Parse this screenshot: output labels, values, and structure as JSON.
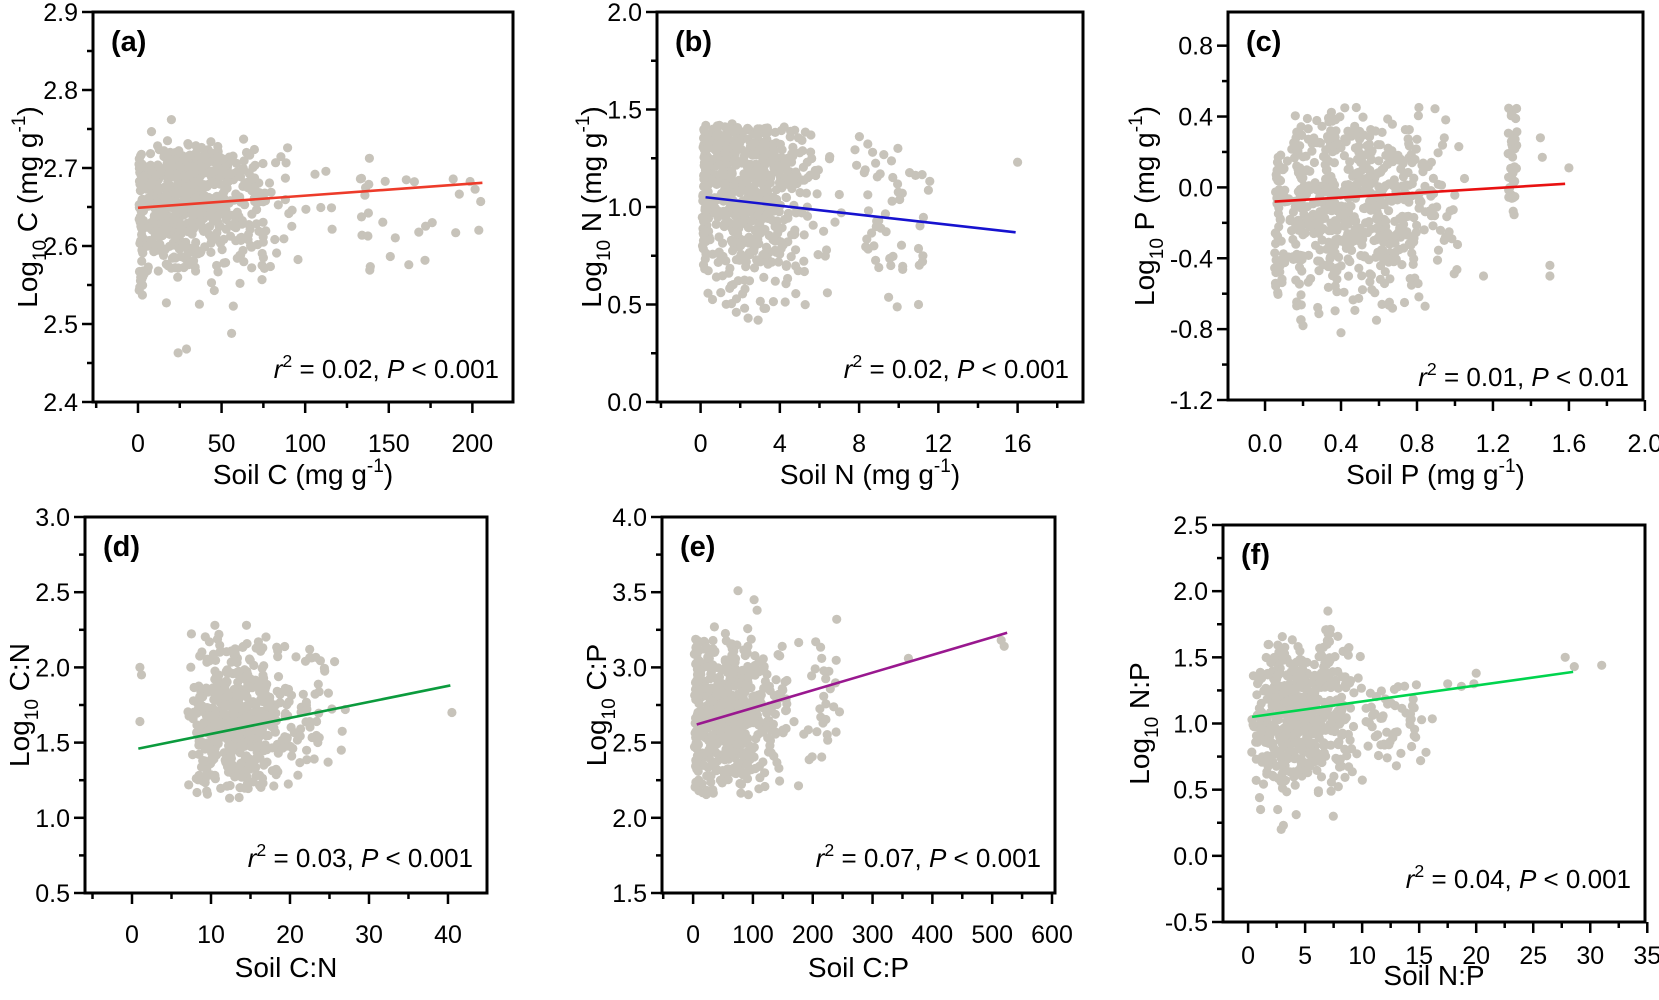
{
  "figure": {
    "background": "#ffffff",
    "point_color": "#c7c3ba",
    "axis_color": "#000000",
    "point_radius": 4.6
  },
  "chart_data": [
    {
      "id": "a",
      "panel_label": "(a)",
      "type": "scatter",
      "xlabel": [
        {
          "t": "Soil C (mg g"
        },
        {
          "t": "-1",
          "s": "sup"
        },
        {
          "t": ")"
        }
      ],
      "ylabel": [
        {
          "t": "Log"
        },
        {
          "t": "10",
          "s": "sub"
        },
        {
          "t": " C (mg g"
        },
        {
          "t": "-1",
          "s": "sup"
        },
        {
          "t": ")"
        }
      ],
      "xlim": [
        -26.9,
        224.3
      ],
      "ylim": [
        2.4,
        2.9
      ],
      "xticks": {
        "values": [
          0,
          50,
          100,
          150,
          200
        ],
        "labels": [
          "0",
          "50",
          "100",
          "150",
          "200"
        ],
        "minor_step": 25
      },
      "yticks": {
        "values": [
          2.4,
          2.5,
          2.6,
          2.7,
          2.8,
          2.9
        ],
        "labels": [
          "2.4",
          "2.5",
          "2.6",
          "2.7",
          "2.8",
          "2.9"
        ],
        "minor_step": 0.05
      },
      "trend": {
        "color": "#ed3b2a",
        "x1": 0,
        "y1": 2.649,
        "x2": 206,
        "y2": 2.681
      },
      "annotation": [
        {
          "t": "r",
          "s": "i"
        },
        {
          "t": "2",
          "s": "sup"
        },
        {
          "t": " = 0.02, "
        },
        {
          "t": "P",
          "s": "i"
        },
        {
          "t": " < 0.001"
        }
      ],
      "clusters": [
        {
          "dist": "normal",
          "n": 500,
          "cx": 30,
          "cy": 2.653,
          "sx": 26,
          "sy": 0.04,
          "xmin": 1,
          "xmax": 97,
          "ymin": 2.525,
          "ymax": 2.762
        },
        {
          "dist": "normal",
          "n": 90,
          "cx": 32,
          "cy": 2.706,
          "sx": 20,
          "sy": 0.012,
          "xmin": 2,
          "xmax": 82,
          "ymin": 2.682,
          "ymax": 2.724
        },
        {
          "dist": "uniform",
          "n": 55,
          "xmin": 0.5,
          "xmax": 3.5,
          "ymin": 2.532,
          "ymax": 2.715
        },
        {
          "dist": "uniform",
          "n": 28,
          "xmin": 3,
          "xmax": 80,
          "ymin": 2.556,
          "ymax": 2.615
        },
        {
          "dist": "uniform",
          "n": 12,
          "xmin": 133,
          "xmax": 139,
          "ymin": 2.568,
          "ymax": 2.714
        },
        {
          "dist": "uniform",
          "n": 14,
          "xmin": 146,
          "xmax": 208,
          "ymin": 2.576,
          "ymax": 2.704
        },
        {
          "dist": "uniform",
          "n": 6,
          "xmin": 96,
          "xmax": 128,
          "ymin": 2.6,
          "ymax": 2.72
        }
      ],
      "points": [
        [
          20,
          2.762
        ],
        [
          24,
          2.463
        ],
        [
          29,
          2.468
        ],
        [
          17,
          2.527
        ],
        [
          56,
          2.488
        ],
        [
          57,
          2.523
        ],
        [
          44,
          2.553
        ],
        [
          61,
          2.552
        ],
        [
          68,
          2.572
        ],
        [
          75,
          2.585
        ],
        [
          47,
          2.575
        ],
        [
          36,
          2.59
        ],
        [
          190,
          2.617
        ],
        [
          176,
          2.63
        ],
        [
          205,
          2.657
        ],
        [
          162,
          2.576
        ]
      ]
    },
    {
      "id": "b",
      "panel_label": "(b)",
      "type": "scatter",
      "xlabel": [
        {
          "t": "Soil N (mg g"
        },
        {
          "t": "-1",
          "s": "sup"
        },
        {
          "t": ")"
        }
      ],
      "ylabel": [
        {
          "t": "Log"
        },
        {
          "t": "10",
          "s": "sub"
        },
        {
          "t": " N (mg g"
        },
        {
          "t": "-1",
          "s": "sup"
        },
        {
          "t": ")"
        }
      ],
      "xlim": [
        -2.2,
        19.3
      ],
      "ylim": [
        0.0,
        2.0
      ],
      "xticks": {
        "values": [
          0,
          4,
          8,
          12,
          16
        ],
        "labels": [
          "0",
          "4",
          "8",
          "12",
          "16"
        ],
        "minor_step": 2
      },
      "yticks": {
        "values": [
          0.0,
          0.5,
          1.0,
          1.5,
          2.0
        ],
        "labels": [
          "0.0",
          "0.5",
          "1.0",
          "1.5",
          "2.0"
        ],
        "minor_step": 0.25
      },
      "trend": {
        "color": "#1612cf",
        "x1": 0.25,
        "y1": 1.05,
        "x2": 15.9,
        "y2": 0.87
      },
      "annotation": [
        {
          "t": "r",
          "s": "i"
        },
        {
          "t": "2",
          "s": "sup"
        },
        {
          "t": " = 0.02, "
        },
        {
          "t": "P",
          "s": "i"
        },
        {
          "t": " < 0.001"
        }
      ],
      "clusters": [
        {
          "dist": "normal",
          "n": 500,
          "cx": 2.3,
          "cy": 1.04,
          "sx": 1.7,
          "sy": 0.24,
          "xmin": 0.08,
          "xmax": 7.2,
          "ymin": 0.44,
          "ymax": 1.43
        },
        {
          "dist": "normal",
          "n": 80,
          "cx": 2.0,
          "cy": 1.33,
          "sx": 1.5,
          "sy": 0.07,
          "xmin": 0.1,
          "xmax": 6.5,
          "ymin": 1.15,
          "ymax": 1.43
        },
        {
          "dist": "uniform",
          "n": 50,
          "xmin": 0.08,
          "xmax": 0.35,
          "ymin": 0.72,
          "ymax": 1.42
        },
        {
          "dist": "normal",
          "n": 50,
          "cx": 9.3,
          "cy": 1.0,
          "sx": 1.4,
          "sy": 0.24,
          "xmin": 7.3,
          "xmax": 11.6,
          "ymin": 0.46,
          "ymax": 1.37
        }
      ],
      "points": [
        [
          16,
          1.23
        ],
        [
          11,
          0.5
        ],
        [
          2.9,
          0.42
        ],
        [
          2.4,
          0.43
        ],
        [
          1.8,
          0.46
        ],
        [
          3.2,
          0.48
        ],
        [
          10.2,
          0.68
        ],
        [
          9.6,
          0.7
        ],
        [
          11.2,
          0.72
        ],
        [
          6.4,
          0.56
        ]
      ]
    },
    {
      "id": "c",
      "panel_label": "(c)",
      "type": "scatter",
      "xlabel": [
        {
          "t": "Soil P (mg g"
        },
        {
          "t": "-1",
          "s": "sup"
        },
        {
          "t": ")"
        }
      ],
      "ylabel": [
        {
          "t": "Log"
        },
        {
          "t": "10",
          "s": "sub"
        },
        {
          "t": " P (mg g"
        },
        {
          "t": "-1",
          "s": "sup"
        },
        {
          "t": ")"
        }
      ],
      "xlim": [
        -0.195,
        1.99
      ],
      "ylim": [
        -1.2,
        0.99
      ],
      "xticks": {
        "values": [
          0.0,
          0.4,
          0.8,
          1.2,
          1.6,
          2.0
        ],
        "labels": [
          "0.0",
          "0.4",
          "0.8",
          "1.2",
          "1.6",
          "2.0"
        ],
        "minor_step": 0.2
      },
      "yticks": {
        "values": [
          -1.2,
          -0.8,
          -0.4,
          0.0,
          0.4,
          0.8
        ],
        "labels": [
          "-1.2",
          "-0.8",
          "-0.4",
          "0.0",
          "0.4",
          "0.8"
        ],
        "minor_step": 0.2
      },
      "trend": {
        "color": "#e81111",
        "x1": 0.05,
        "y1": -0.08,
        "x2": 1.58,
        "y2": 0.02
      },
      "annotation": [
        {
          "t": "r",
          "s": "i"
        },
        {
          "t": "2",
          "s": "sup"
        },
        {
          "t": " = 0.01, "
        },
        {
          "t": "P",
          "s": "i"
        },
        {
          "t": " < 0.01"
        }
      ],
      "clusters": [
        {
          "dist": "normal",
          "n": 540,
          "cx": 0.48,
          "cy": -0.1,
          "sx": 0.26,
          "sy": 0.27,
          "xmin": 0.05,
          "xmax": 1.02,
          "ymin": -0.78,
          "ymax": 0.47
        },
        {
          "dist": "uniform",
          "n": 38,
          "xmin": 0.05,
          "xmax": 0.09,
          "ymin": -0.62,
          "ymax": 0.2
        },
        {
          "dist": "uniform",
          "n": 40,
          "xmin": 0.16,
          "xmax": 0.2,
          "ymin": -0.75,
          "ymax": 0.38
        },
        {
          "dist": "uniform",
          "n": 42,
          "xmin": 0.33,
          "xmax": 0.38,
          "ymin": -0.5,
          "ymax": 0.4
        },
        {
          "dist": "uniform",
          "n": 38,
          "xmin": 1.28,
          "xmax": 1.33,
          "ymin": -0.16,
          "ymax": 0.46
        }
      ],
      "points": [
        [
          0.4,
          -0.82
        ],
        [
          1.45,
          0.28
        ],
        [
          1.46,
          0.17
        ],
        [
          1.6,
          0.11
        ],
        [
          1.5,
          -0.44
        ],
        [
          1.5,
          -0.5
        ],
        [
          1.15,
          -0.5
        ],
        [
          1.02,
          0.23
        ],
        [
          1.05,
          0.05
        ],
        [
          0.95,
          -0.28
        ],
        [
          0.2,
          -0.78
        ]
      ]
    },
    {
      "id": "d",
      "panel_label": "(d)",
      "type": "scatter",
      "xlabel": [
        {
          "t": "Soil C:N"
        }
      ],
      "ylabel": [
        {
          "t": "Log"
        },
        {
          "t": "10",
          "s": "sub"
        },
        {
          "t": " C:N"
        }
      ],
      "xlim": [
        -5.95,
        44.94
      ],
      "ylim": [
        0.5,
        3.0
      ],
      "xticks": {
        "values": [
          0,
          10,
          20,
          30,
          40
        ],
        "labels": [
          "0",
          "10",
          "20",
          "30",
          "40"
        ],
        "minor_step": 5
      },
      "yticks": {
        "values": [
          0.5,
          1.0,
          1.5,
          2.0,
          2.5,
          3.0
        ],
        "labels": [
          "0.5",
          "1.0",
          "1.5",
          "2.0",
          "2.5",
          "3.0"
        ],
        "minor_step": 0.25
      },
      "trend": {
        "color": "#0b9b3d",
        "x1": 0.8,
        "y1": 1.46,
        "x2": 40.3,
        "y2": 1.88
      },
      "annotation": [
        {
          "t": "r",
          "s": "i"
        },
        {
          "t": "2",
          "s": "sup"
        },
        {
          "t": " = 0.03, "
        },
        {
          "t": "P",
          "s": "i"
        },
        {
          "t": " < 0.001"
        }
      ],
      "clusters": [
        {
          "dist": "normal",
          "n": 510,
          "cx": 13.5,
          "cy": 1.62,
          "sx": 3.6,
          "sy": 0.26,
          "xmin": 7,
          "xmax": 24,
          "ymin": 1.12,
          "ymax": 2.28
        },
        {
          "dist": "normal",
          "n": 30,
          "cx": 23,
          "cy": 1.7,
          "sx": 2,
          "sy": 0.22,
          "xmin": 20,
          "xmax": 27.5,
          "ymin": 1.3,
          "ymax": 2.12
        }
      ],
      "points": [
        [
          1,
          2.0
        ],
        [
          1.2,
          1.95
        ],
        [
          1,
          1.64
        ],
        [
          40.5,
          1.7
        ],
        [
          22.5,
          2.12
        ],
        [
          10.5,
          2.28
        ],
        [
          14.5,
          2.28
        ],
        [
          9.8,
          2.17
        ],
        [
          16,
          2.17
        ],
        [
          26.5,
          1.45
        ],
        [
          27,
          1.72
        ]
      ]
    },
    {
      "id": "e",
      "panel_label": "(e)",
      "type": "scatter",
      "xlabel": [
        {
          "t": "Soil C:P"
        }
      ],
      "ylabel": [
        {
          "t": "Log"
        },
        {
          "t": "10",
          "s": "sub"
        },
        {
          "t": " C:P"
        }
      ],
      "xlim": [
        -52,
        605
      ],
      "ylim": [
        1.5,
        4.0
      ],
      "xticks": {
        "values": [
          0,
          100,
          200,
          300,
          400,
          500,
          600
        ],
        "labels": [
          "0",
          "100",
          "200",
          "300",
          "400",
          "500",
          "600"
        ],
        "minor_step": 50
      },
      "yticks": {
        "values": [
          1.5,
          2.0,
          2.5,
          3.0,
          3.5,
          4.0
        ],
        "labels": [
          "1.5",
          "2.0",
          "2.5",
          "3.0",
          "3.5",
          "4.0"
        ],
        "minor_step": 0.25
      },
      "trend": {
        "color": "#99188f",
        "x1": 6,
        "y1": 2.62,
        "x2": 525,
        "y2": 3.23
      },
      "annotation": [
        {
          "t": "r",
          "s": "i"
        },
        {
          "t": "2",
          "s": "sup"
        },
        {
          "t": " = 0.07, "
        },
        {
          "t": "P",
          "s": "i"
        },
        {
          "t": " < 0.001"
        }
      ],
      "clusters": [
        {
          "dist": "normal",
          "n": 520,
          "cx": 60,
          "cy": 2.68,
          "sx": 45,
          "sy": 0.28,
          "xmin": 2,
          "xmax": 180,
          "ymin": 2.14,
          "ymax": 3.3
        },
        {
          "dist": "uniform",
          "n": 45,
          "xmin": 3,
          "xmax": 12,
          "ymin": 2.15,
          "ymax": 3.2
        },
        {
          "dist": "normal",
          "n": 26,
          "cx": 215,
          "cy": 2.7,
          "sx": 22,
          "sy": 0.28,
          "xmin": 185,
          "xmax": 255,
          "ymin": 2.38,
          "ymax": 3.32
        }
      ],
      "points": [
        [
          75,
          3.51
        ],
        [
          102,
          3.45
        ],
        [
          107,
          3.38
        ],
        [
          240,
          3.32
        ],
        [
          205,
          3.17
        ],
        [
          215,
          3.06
        ],
        [
          360,
          3.06
        ],
        [
          515,
          3.18
        ],
        [
          520,
          3.14
        ]
      ]
    },
    {
      "id": "f",
      "panel_label": "(f)",
      "type": "scatter",
      "xlabel": [
        {
          "t": "Soil N:P"
        }
      ],
      "ylabel": [
        {
          "t": "Log"
        },
        {
          "t": "10",
          "s": "sub"
        },
        {
          "t": " N:P"
        }
      ],
      "xlim": [
        -2.2,
        34.8
      ],
      "ylim": [
        -0.5,
        2.5
      ],
      "xticks": {
        "values": [
          0,
          5,
          10,
          15,
          20,
          25,
          30,
          35
        ],
        "labels": [
          "0",
          "5",
          "10",
          "15",
          "20",
          "25",
          "30",
          "35"
        ],
        "minor_step": 2.5
      },
      "yticks": {
        "values": [
          -0.5,
          0.0,
          0.5,
          1.0,
          1.5,
          2.0,
          2.5
        ],
        "labels": [
          "-0.5",
          "0.0",
          "0.5",
          "1.0",
          "1.5",
          "2.0",
          "2.5"
        ],
        "minor_step": 0.25
      },
      "trend": {
        "color": "#00d44e",
        "x1": 0.35,
        "y1": 1.05,
        "x2": 28.5,
        "y2": 1.39
      },
      "annotation": [
        {
          "t": "r",
          "s": "i"
        },
        {
          "t": "2",
          "s": "sup"
        },
        {
          "t": " = 0.04, "
        },
        {
          "t": "P",
          "s": "i"
        },
        {
          "t": " < 0.001"
        }
      ],
      "clusters": [
        {
          "dist": "normal",
          "n": 520,
          "cx": 4.3,
          "cy": 1.05,
          "sx": 2.6,
          "sy": 0.28,
          "xmin": 0.3,
          "xmax": 11,
          "ymin": 0.2,
          "ymax": 1.66
        },
        {
          "dist": "uniform",
          "n": 22,
          "xmin": 6.8,
          "xmax": 7.3,
          "ymin": 1.25,
          "ymax": 1.72
        },
        {
          "dist": "normal",
          "n": 45,
          "cx": 12.8,
          "cy": 1.05,
          "sx": 1.8,
          "sy": 0.2,
          "xmin": 10.8,
          "xmax": 16.2,
          "ymin": 0.64,
          "ymax": 1.32
        }
      ],
      "points": [
        [
          7,
          1.85
        ],
        [
          17.5,
          1.3
        ],
        [
          18.7,
          1.28
        ],
        [
          20,
          1.38
        ],
        [
          19.8,
          1.3
        ],
        [
          27.8,
          1.5
        ],
        [
          28.6,
          1.43
        ],
        [
          31,
          1.44
        ],
        [
          13,
          0.68
        ],
        [
          12.2,
          0.74
        ],
        [
          2.9,
          0.2
        ],
        [
          3.1,
          0.23
        ],
        [
          2.6,
          0.35
        ],
        [
          1.1,
          0.35
        ],
        [
          1.0,
          0.44
        ]
      ]
    }
  ]
}
